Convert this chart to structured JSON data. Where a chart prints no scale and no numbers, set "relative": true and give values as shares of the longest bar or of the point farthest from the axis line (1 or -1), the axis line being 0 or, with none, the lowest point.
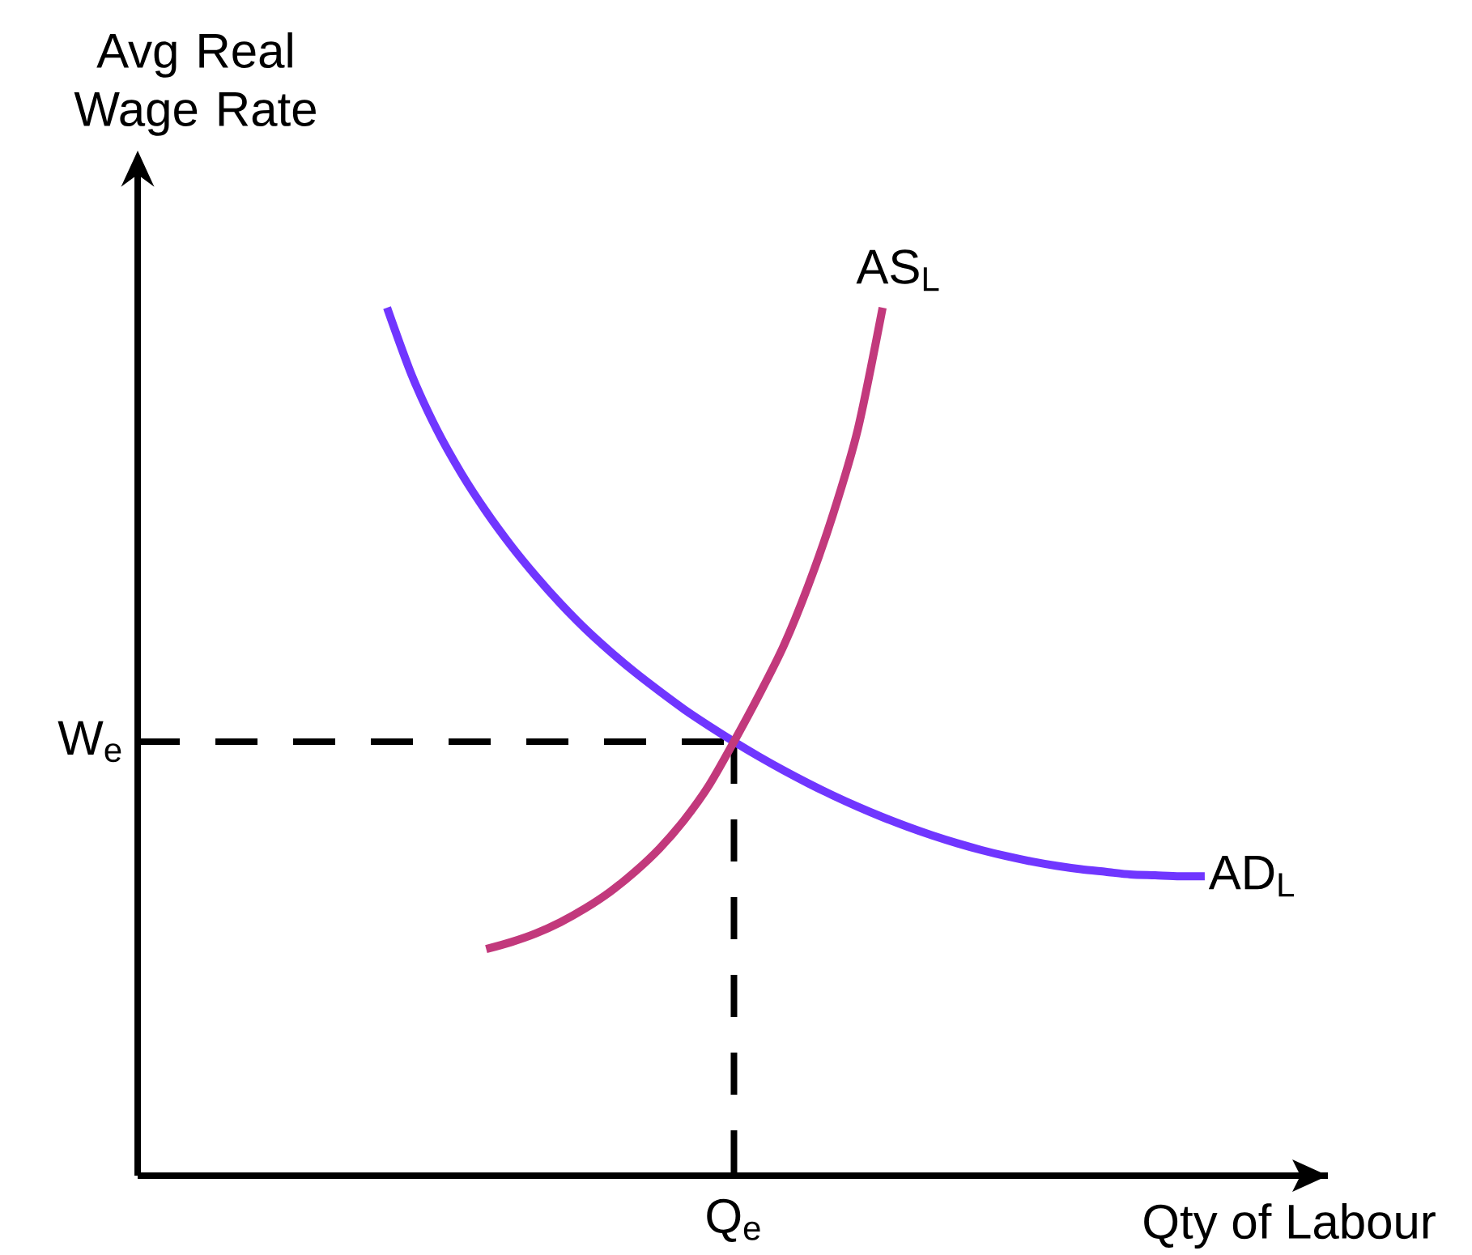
{
  "chart_data": {
    "type": "line",
    "relative": true,
    "xlabel": "Qty of Labour",
    "ylabel": "Avg Real Wage Rate",
    "line_style": "solid",
    "categories": [
      null,
      null,
      null,
      null,
      null,
      null,
      null,
      null,
      null,
      null,
      null,
      null,
      null,
      null,
      null,
      null,
      null,
      null,
      null,
      null,
      null,
      null,
      null,
      null,
      null,
      null,
      null,
      null,
      null,
      null,
      null,
      null,
      null,
      null
    ],
    "series": [
      {
        "name": "AD$_{L}$",
        "color": "#7036ff",
        "values": [
          1.0,
          0.922,
          0.86,
          0.809,
          0.765,
          0.726,
          0.691,
          0.659,
          0.63,
          0.604,
          0.58,
          0.558,
          0.537,
          0.518,
          0.5,
          0.483,
          0.467,
          0.452,
          0.438,
          0.425,
          0.413,
          0.402,
          0.392,
          0.383,
          0.375,
          0.368,
          0.362,
          0.357,
          0.353,
          0.35,
          0.347,
          0.346,
          0.345,
          0.345
        ]
      },
      {
        "name": "AS$_{L}$",
        "color": "#c2397c",
        "values": [
          null,
          null,
          null,
          null,
          0.261,
          0.269,
          0.279,
          0.292,
          0.308,
          0.327,
          0.35,
          0.377,
          0.41,
          0.45,
          0.5,
          0.553,
          0.61,
          0.68,
          0.762,
          0.86,
          1.0,
          null,
          null,
          null,
          null,
          null,
          null,
          null,
          null,
          null,
          null,
          null,
          null,
          null
        ]
      }
    ],
    "ref_lines": [
      {
        "axis": "y",
        "value": 0.5,
        "label": "W$_{e}$",
        "line_style": "dashed",
        "color": "#000000"
      }
    ],
    "annotations": [
      "Q$_{e}$"
    ]
  }
}
